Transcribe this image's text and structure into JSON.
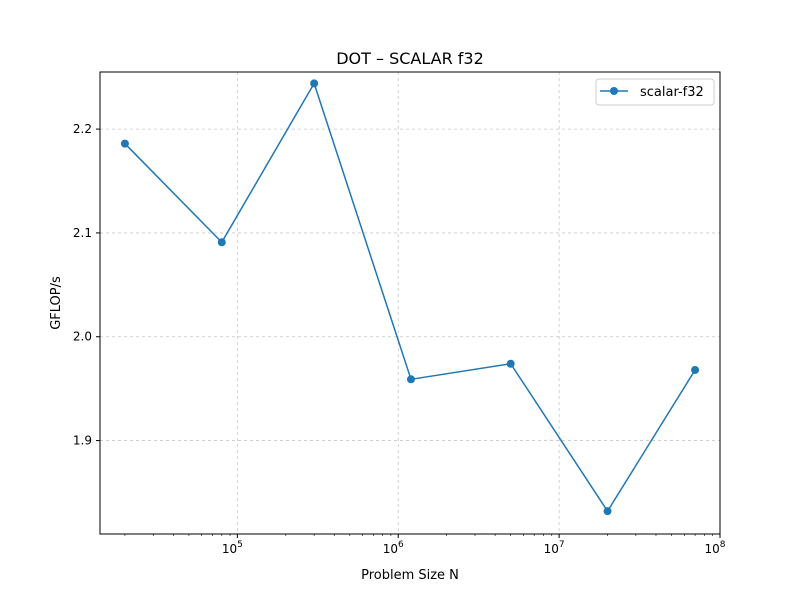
{
  "chart_data": {
    "type": "line",
    "title": "DOT – SCALAR f32",
    "xlabel": "Problem Size N",
    "ylabel": "GFLOP/s",
    "x_scale": "log",
    "xlim": [
      14000,
      100000000
    ],
    "ylim": [
      1.81,
      2.255
    ],
    "x_ticks": [
      {
        "value": 100000,
        "base": "10",
        "exp": "5"
      },
      {
        "value": 1000000,
        "base": "10",
        "exp": "6"
      },
      {
        "value": 10000000,
        "base": "10",
        "exp": "7"
      },
      {
        "value": 100000000,
        "base": "10",
        "exp": "8"
      }
    ],
    "y_ticks": [
      {
        "value": 1.9,
        "label": "1.9"
      },
      {
        "value": 2.0,
        "label": "2.0"
      },
      {
        "value": 2.1,
        "label": "2.1"
      },
      {
        "value": 2.2,
        "label": "2.2"
      }
    ],
    "grid": true,
    "legend_position": "top-right",
    "series": [
      {
        "name": "scalar-f32",
        "color": "#1f77b4",
        "marker": "circle",
        "x": [
          20000,
          80000,
          300000,
          1200000,
          5000000,
          20000000,
          70000000
        ],
        "y": [
          2.186,
          2.091,
          2.244,
          1.959,
          1.974,
          1.832,
          1.968
        ]
      }
    ]
  }
}
